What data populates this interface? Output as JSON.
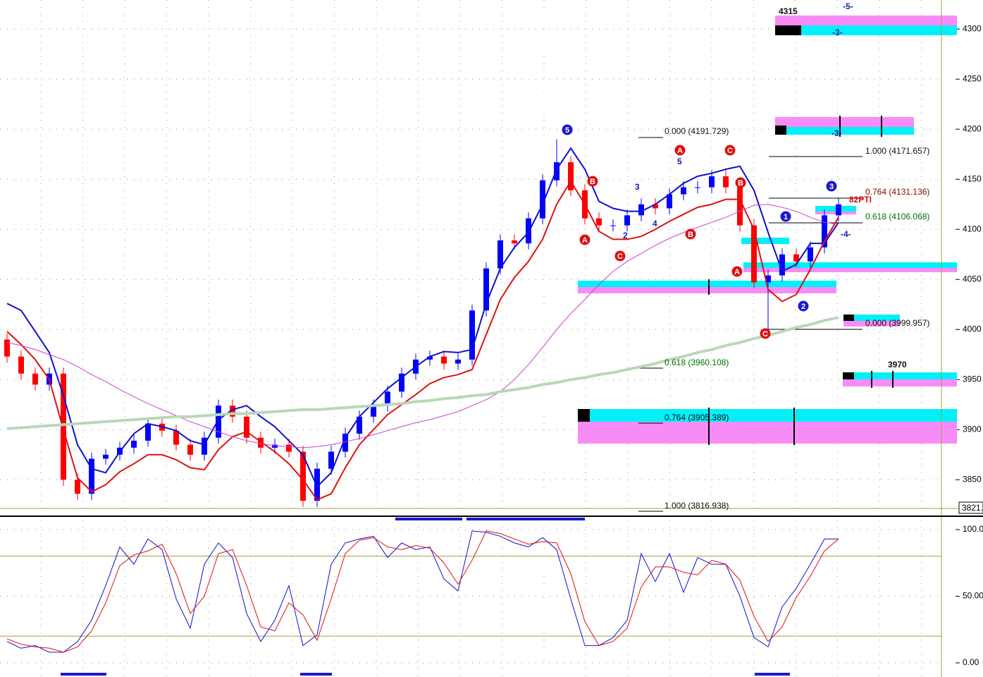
{
  "chart_data": [
    {
      "type": "candlestick",
      "ylim": [
        3815,
        4329
      ],
      "yticks": [
        4300,
        4250,
        4200,
        4150,
        4100,
        4050,
        4000,
        3950,
        3900,
        3850
      ],
      "grid": true,
      "up_color": "#0000ff",
      "down_color": "#ff0000",
      "open": [
        3990,
        3973,
        3956,
        3945,
        3956,
        3850,
        3836,
        3871,
        3875,
        3882,
        3889,
        3906,
        3899,
        3885,
        3875,
        3892,
        3924,
        3913,
        3892,
        3882,
        3885,
        3878,
        3829,
        3861,
        3878,
        3896,
        3913,
        3924,
        3938,
        3956,
        3970,
        3973,
        3966,
        3970,
        4019,
        4061,
        4089,
        4086,
        4111,
        4149,
        4167,
        4139,
        4111,
        4104,
        4104,
        4114,
        4125,
        4121,
        4135,
        4142,
        4142,
        4153,
        4142,
        4104,
        4047,
        4054,
        4075,
        4068,
        4082,
        4114
      ],
      "high": [
        3996,
        3979,
        3962,
        3962,
        3962,
        3856,
        3877,
        3881,
        3888,
        3895,
        3912,
        3912,
        3905,
        3891,
        3898,
        3930,
        3930,
        3919,
        3898,
        3891,
        3891,
        3884,
        3867,
        3884,
        3902,
        3919,
        3930,
        3944,
        3962,
        3976,
        3979,
        3979,
        3976,
        4025,
        4067,
        4095,
        4095,
        4117,
        4155,
        4190,
        4173,
        4145,
        4117,
        4110,
        4120,
        4131,
        4131,
        4141,
        4148,
        4148,
        4159,
        4159,
        4148,
        4110,
        4060,
        4081,
        4081,
        4088,
        4120,
        4131
      ],
      "low": [
        3967,
        3950,
        3939,
        3939,
        3844,
        3830,
        3830,
        3865,
        3869,
        3876,
        3883,
        3893,
        3879,
        3869,
        3869,
        3886,
        3907,
        3886,
        3876,
        3876,
        3872,
        3823,
        3823,
        3855,
        3872,
        3890,
        3907,
        3918,
        3932,
        3950,
        3964,
        3960,
        3960,
        3964,
        4013,
        4055,
        4080,
        4080,
        4105,
        4143,
        4133,
        4105,
        4098,
        4098,
        4098,
        4108,
        4115,
        4115,
        4129,
        4136,
        4136,
        4136,
        4098,
        4041,
        4000,
        4048,
        4062,
        4062,
        4076,
        4108
      ],
      "close": [
        3973,
        3956,
        3945,
        3956,
        3850,
        3836,
        3871,
        3875,
        3882,
        3889,
        3906,
        3899,
        3885,
        3875,
        3892,
        3924,
        3913,
        3892,
        3882,
        3885,
        3878,
        3829,
        3861,
        3878,
        3896,
        3913,
        3924,
        3938,
        3956,
        3970,
        3973,
        3966,
        3970,
        4019,
        4061,
        4089,
        4086,
        4111,
        4149,
        4167,
        4139,
        4111,
        4104,
        4104,
        4114,
        4125,
        4121,
        4135,
        4142,
        4142,
        4153,
        4142,
        4104,
        4047,
        4054,
        4075,
        4068,
        4082,
        4114,
        4125
      ],
      "series": [
        {
          "color": "#1010d0",
          "width": 2,
          "values": [
            4026,
            4019,
            3998,
            3977,
            3934,
            3885,
            3861,
            3857,
            3878,
            3896,
            3906,
            3903,
            3899,
            3889,
            3885,
            3910,
            3920,
            3924,
            3913,
            3903,
            3889,
            3875,
            3843,
            3857,
            3892,
            3913,
            3927,
            3941,
            3952,
            3963,
            3973,
            3978,
            3977,
            3980,
            4026,
            4061,
            4082,
            4097,
            4125,
            4160,
            4181,
            4160,
            4128,
            4121,
            4118,
            4118,
            4125,
            4135,
            4146,
            4153,
            4156,
            4160,
            4163,
            4139,
            4097,
            4058,
            4065,
            4086,
            4086,
            4107
          ]
        },
        {
          "color": "#e01010",
          "width": 2,
          "values": [
            3998,
            3985,
            3970,
            3950,
            3900,
            3852,
            3838,
            3845,
            3858,
            3866,
            3875,
            3875,
            3870,
            3862,
            3860,
            3880,
            3893,
            3898,
            3888,
            3878,
            3866,
            3850,
            3830,
            3836,
            3862,
            3885,
            3900,
            3915,
            3925,
            3935,
            3946,
            3952,
            3955,
            3960,
            3995,
            4030,
            4052,
            4068,
            4090,
            4125,
            4148,
            4125,
            4098,
            4090,
            4090,
            4093,
            4100,
            4108,
            4115,
            4122,
            4125,
            4130,
            4130,
            4100,
            4040,
            4028,
            4035,
            4060,
            4088,
            4112
          ]
        },
        {
          "color": "#d040d0",
          "width": 1,
          "values": [
            3987,
            3984,
            3980,
            3975,
            3970,
            3963,
            3955,
            3948,
            3940,
            3933,
            3926,
            3920,
            3914,
            3908,
            3903,
            3898,
            3893,
            3889,
            3886,
            3884,
            3883,
            3882,
            3883,
            3885,
            3888,
            3891,
            3895,
            3899,
            3903,
            3907,
            3910,
            3914,
            3918,
            3924,
            3930,
            3938,
            3950,
            3965,
            3982,
            4000,
            4016,
            4030,
            4045,
            4058,
            4068,
            4076,
            4084,
            4091,
            4097,
            4102,
            4107,
            4112,
            4118,
            4124,
            4125,
            4122,
            4118,
            4112,
            4107,
            4105
          ]
        },
        {
          "color": "#b8d8b8",
          "width": 4,
          "values": [
            3901,
            3902,
            3903,
            3904,
            3905,
            3906,
            3907,
            3908,
            3909,
            3910,
            3911,
            3912,
            3913,
            3913,
            3914,
            3915,
            3916,
            3916,
            3917,
            3918,
            3919,
            3920,
            3920,
            3921,
            3922,
            3923,
            3924,
            3925,
            3926,
            3928,
            3929,
            3931,
            3932,
            3934,
            3935,
            3938,
            3940,
            3942,
            3945,
            3947,
            3950,
            3952,
            3955,
            3957,
            3960,
            3963,
            3966,
            3970,
            3973,
            3977,
            3980,
            3984,
            3987,
            3991,
            3994,
            3998,
            4002,
            4005,
            4009,
            4012
          ]
        }
      ],
      "last_price_label": "3821.",
      "annotations": [
        "4315",
        "-5-",
        "-3-",
        "-3-",
        "0.000 (4191.729)",
        "1.000 (4171.657)",
        "0.764 (4131.136)",
        "82PTI",
        "0.618 (4106.068)",
        "0.000 (3999.957)",
        "0.618 (3960.108)",
        "0.764 (3905.389)",
        "1.000 (3816.938)",
        "3970",
        "5",
        "3",
        "2",
        "4",
        "-4-"
      ],
      "wave_labels": [
        "5",
        "A",
        "B",
        "C",
        "A",
        "B",
        "C",
        "B",
        "A",
        "C",
        "1",
        "2",
        "3"
      ]
    },
    {
      "type": "line",
      "ylim": [
        -10.6,
        107.4
      ],
      "yticks": [
        {
          "value": 100,
          "label": "100.0"
        },
        {
          "value": 50,
          "label": "50.00"
        },
        {
          "value": 0,
          "label": "0.00"
        }
      ],
      "ref_lines": [
        80,
        20
      ],
      "grid": true,
      "series": [
        {
          "color": "#1010d0",
          "width": 1,
          "values": [
            16,
            11,
            13,
            8,
            8,
            16,
            32,
            58,
            87,
            74,
            93,
            85,
            48,
            26,
            74,
            90,
            79,
            37,
            16,
            32,
            58,
            13,
            21,
            74,
            90,
            93,
            95,
            79,
            90,
            85,
            87,
            63,
            54,
            99,
            98,
            95,
            90,
            87,
            94,
            85,
            48,
            13,
            13,
            19,
            32,
            82,
            61,
            82,
            53,
            79,
            74,
            74,
            50,
            19,
            12,
            42,
            56,
            74,
            93,
            93
          ]
        },
        {
          "color": "#e01010",
          "width": 1,
          "values": [
            18,
            14,
            12,
            11,
            8,
            12,
            24,
            45,
            73,
            81,
            84,
            89,
            67,
            37,
            50,
            82,
            85,
            58,
            27,
            24,
            45,
            36,
            17,
            48,
            82,
            92,
            94,
            87,
            85,
            88,
            86,
            75,
            59,
            77,
            99,
            97,
            93,
            89,
            91,
            90,
            67,
            31,
            13,
            16,
            26,
            57,
            72,
            72,
            68,
            66,
            77,
            74,
            62,
            35,
            16,
            27,
            49,
            65,
            84,
            93
          ]
        }
      ]
    }
  ]
}
